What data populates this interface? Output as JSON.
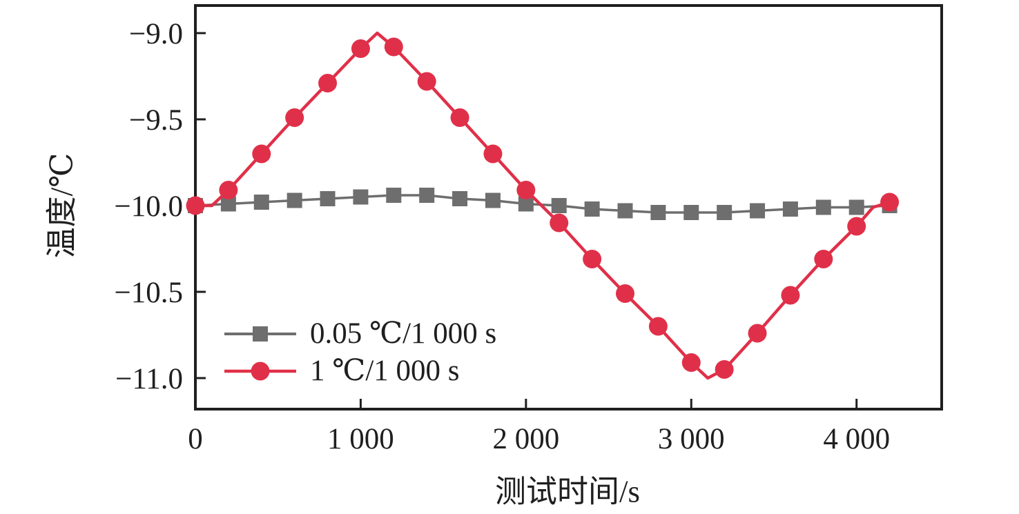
{
  "chart_data": {
    "type": "line",
    "title": "",
    "xlabel": "测试时间/s",
    "ylabel": "温度/℃",
    "x_range": [
      0,
      4515
    ],
    "y_range": [
      -11.18,
      -8.84
    ],
    "x_ticks": [
      {
        "value": 0,
        "label": "0"
      },
      {
        "value": 1000,
        "label": "1 000"
      },
      {
        "value": 2000,
        "label": "2 000"
      },
      {
        "value": 3000,
        "label": "3 000"
      },
      {
        "value": 4000,
        "label": "4 000"
      }
    ],
    "y_ticks": [
      {
        "value": -9.0,
        "label": "−9.0"
      },
      {
        "value": -9.5,
        "label": "−9.5"
      },
      {
        "value": -10.0,
        "label": "−10.0"
      },
      {
        "value": -10.5,
        "label": "−10.5"
      },
      {
        "value": -11.0,
        "label": "−11.0"
      }
    ],
    "grid": false,
    "legend_position": "inside-bottom-left",
    "axis_color": "#1f1f1f",
    "series": [
      {
        "name": "0.05 ℃/1 000 s",
        "color": "#6e6e6e",
        "marker": "square",
        "points": [
          [
            0,
            -10.0
          ],
          [
            200,
            -9.99
          ],
          [
            400,
            -9.98
          ],
          [
            600,
            -9.97
          ],
          [
            800,
            -9.96
          ],
          [
            1000,
            -9.95
          ],
          [
            1200,
            -9.94
          ],
          [
            1400,
            -9.94
          ],
          [
            1600,
            -9.96
          ],
          [
            1800,
            -9.97
          ],
          [
            2000,
            -9.99
          ],
          [
            2200,
            -10.0
          ],
          [
            2400,
            -10.02
          ],
          [
            2600,
            -10.03
          ],
          [
            2800,
            -10.04
          ],
          [
            3000,
            -10.04
          ],
          [
            3200,
            -10.04
          ],
          [
            3400,
            -10.03
          ],
          [
            3600,
            -10.02
          ],
          [
            3800,
            -10.01
          ],
          [
            4000,
            -10.01
          ],
          [
            4200,
            -10.0
          ]
        ],
        "line": [
          [
            0,
            -10.0
          ],
          [
            200,
            -9.99
          ],
          [
            400,
            -9.98
          ],
          [
            600,
            -9.97
          ],
          [
            800,
            -9.96
          ],
          [
            1000,
            -9.95
          ],
          [
            1200,
            -9.94
          ],
          [
            1400,
            -9.94
          ],
          [
            1600,
            -9.96
          ],
          [
            1800,
            -9.97
          ],
          [
            2000,
            -9.99
          ],
          [
            2200,
            -10.0
          ],
          [
            2400,
            -10.02
          ],
          [
            2600,
            -10.03
          ],
          [
            2800,
            -10.04
          ],
          [
            3000,
            -10.04
          ],
          [
            3200,
            -10.04
          ],
          [
            3400,
            -10.03
          ],
          [
            3600,
            -10.02
          ],
          [
            3800,
            -10.01
          ],
          [
            4000,
            -10.01
          ],
          [
            4200,
            -10.0
          ]
        ]
      },
      {
        "name": "1 ℃/1 000 s",
        "color": "#e03049",
        "marker": "circle",
        "points": [
          [
            0,
            -10.0
          ],
          [
            200,
            -9.91
          ],
          [
            400,
            -9.7
          ],
          [
            600,
            -9.49
          ],
          [
            800,
            -9.29
          ],
          [
            1000,
            -9.09
          ],
          [
            1200,
            -9.08
          ],
          [
            1400,
            -9.28
          ],
          [
            1600,
            -9.49
          ],
          [
            1800,
            -9.7
          ],
          [
            2000,
            -9.91
          ],
          [
            2200,
            -10.1
          ],
          [
            2400,
            -10.31
          ],
          [
            2600,
            -10.51
          ],
          [
            2800,
            -10.7
          ],
          [
            3000,
            -10.91
          ],
          [
            3200,
            -10.95
          ],
          [
            3400,
            -10.74
          ],
          [
            3600,
            -10.52
          ],
          [
            3800,
            -10.31
          ],
          [
            4000,
            -10.12
          ],
          [
            4200,
            -9.98
          ]
        ],
        "line": [
          [
            0,
            -10.0
          ],
          [
            100,
            -10.0
          ],
          [
            200,
            -9.91
          ],
          [
            400,
            -9.7
          ],
          [
            600,
            -9.49
          ],
          [
            800,
            -9.29
          ],
          [
            1000,
            -9.09
          ],
          [
            1100,
            -9.0
          ],
          [
            1200,
            -9.08
          ],
          [
            1400,
            -9.28
          ],
          [
            1600,
            -9.49
          ],
          [
            1800,
            -9.7
          ],
          [
            2000,
            -9.91
          ],
          [
            2200,
            -10.1
          ],
          [
            2400,
            -10.31
          ],
          [
            2600,
            -10.51
          ],
          [
            2800,
            -10.7
          ],
          [
            3000,
            -10.91
          ],
          [
            3100,
            -11.0
          ],
          [
            3200,
            -10.95
          ],
          [
            3400,
            -10.74
          ],
          [
            3600,
            -10.52
          ],
          [
            3800,
            -10.31
          ],
          [
            4000,
            -10.12
          ],
          [
            4100,
            -10.01
          ],
          [
            4200,
            -9.98
          ]
        ]
      }
    ]
  }
}
